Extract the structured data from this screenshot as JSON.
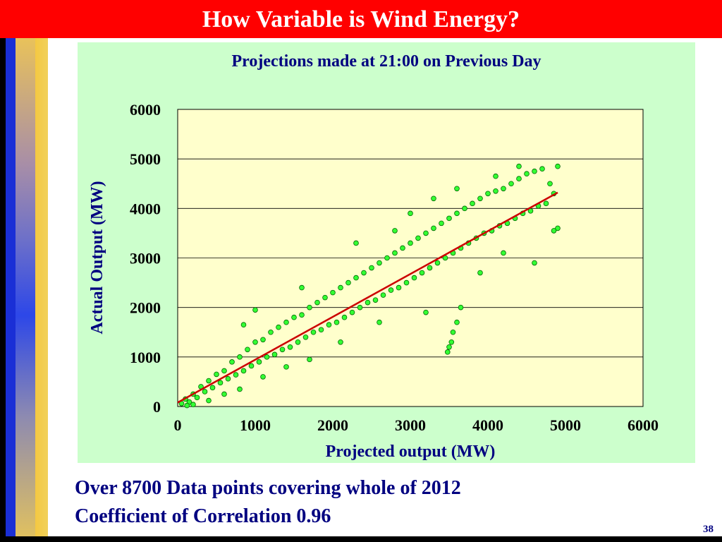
{
  "slide": {
    "title": "How Variable is Wind Energy?",
    "caption_line1": "Over 8700 Data points covering whole of 2012",
    "caption_line2": "Coefficient of Correlation 0.96",
    "slide_number": "38"
  },
  "chart_data": {
    "type": "scatter",
    "title": "Projections made at 21:00 on Previous  Day",
    "xlabel": "Projected output (MW)",
    "ylabel": "Actual Output (MW)",
    "xlim": [
      0,
      6000
    ],
    "ylim": [
      0,
      6000
    ],
    "xticks": [
      0,
      1000,
      2000,
      3000,
      4000,
      5000,
      6000
    ],
    "yticks": [
      0,
      1000,
      2000,
      3000,
      4000,
      5000,
      6000
    ],
    "grid": "horizontal",
    "point_count": 8700,
    "correlation": 0.96,
    "trend_line": {
      "x": [
        0,
        4900
      ],
      "y": [
        80,
        4320
      ]
    },
    "series": [
      {
        "marker_color": "#33ff33",
        "marker_edge": "#006600",
        "points": [
          [
            50,
            60
          ],
          [
            100,
            150
          ],
          [
            150,
            90
          ],
          [
            200,
            250
          ],
          [
            250,
            180
          ],
          [
            300,
            400
          ],
          [
            350,
            300
          ],
          [
            400,
            520
          ],
          [
            450,
            380
          ],
          [
            500,
            650
          ],
          [
            550,
            480
          ],
          [
            600,
            720
          ],
          [
            650,
            560
          ],
          [
            700,
            900
          ],
          [
            750,
            640
          ],
          [
            800,
            1000
          ],
          [
            850,
            720
          ],
          [
            900,
            1150
          ],
          [
            950,
            820
          ],
          [
            1000,
            1300
          ],
          [
            1050,
            900
          ],
          [
            1100,
            1350
          ],
          [
            1150,
            1000
          ],
          [
            1200,
            1500
          ],
          [
            1250,
            1050
          ],
          [
            1300,
            1600
          ],
          [
            1350,
            1150
          ],
          [
            1400,
            1700
          ],
          [
            1450,
            1200
          ],
          [
            1500,
            1800
          ],
          [
            1550,
            1300
          ],
          [
            1600,
            1850
          ],
          [
            1650,
            1400
          ],
          [
            1700,
            2000
          ],
          [
            1750,
            1500
          ],
          [
            1800,
            2100
          ],
          [
            1850,
            1550
          ],
          [
            1900,
            2200
          ],
          [
            1950,
            1650
          ],
          [
            2000,
            2300
          ],
          [
            2050,
            1700
          ],
          [
            2100,
            2400
          ],
          [
            2150,
            1800
          ],
          [
            2200,
            2500
          ],
          [
            2250,
            1900
          ],
          [
            2300,
            2600
          ],
          [
            2350,
            2000
          ],
          [
            2400,
            2700
          ],
          [
            2450,
            2100
          ],
          [
            2500,
            2800
          ],
          [
            2550,
            2150
          ],
          [
            2600,
            2900
          ],
          [
            2650,
            2250
          ],
          [
            2700,
            3000
          ],
          [
            2750,
            2350
          ],
          [
            2800,
            3100
          ],
          [
            2850,
            2400
          ],
          [
            2900,
            3200
          ],
          [
            2950,
            2500
          ],
          [
            3000,
            3300
          ],
          [
            3050,
            2600
          ],
          [
            3100,
            3400
          ],
          [
            3150,
            2700
          ],
          [
            3200,
            3500
          ],
          [
            3250,
            2800
          ],
          [
            3300,
            3600
          ],
          [
            3350,
            2900
          ],
          [
            3400,
            3700
          ],
          [
            3450,
            3000
          ],
          [
            3500,
            3800
          ],
          [
            3550,
            3100
          ],
          [
            3600,
            3900
          ],
          [
            3650,
            3200
          ],
          [
            3700,
            4000
          ],
          [
            3750,
            3300
          ],
          [
            3800,
            4100
          ],
          [
            3850,
            3400
          ],
          [
            3900,
            4200
          ],
          [
            3950,
            3500
          ],
          [
            4000,
            4300
          ],
          [
            4050,
            3550
          ],
          [
            4100,
            4350
          ],
          [
            4150,
            3650
          ],
          [
            4200,
            4400
          ],
          [
            4250,
            3700
          ],
          [
            4300,
            4500
          ],
          [
            4350,
            3800
          ],
          [
            4400,
            4600
          ],
          [
            4450,
            3900
          ],
          [
            4500,
            4700
          ],
          [
            4550,
            3950
          ],
          [
            4600,
            4750
          ],
          [
            4650,
            4050
          ],
          [
            4700,
            4800
          ],
          [
            4750,
            4100
          ],
          [
            4800,
            4500
          ],
          [
            4850,
            4300
          ],
          [
            4900,
            4850
          ],
          [
            4900,
            3600
          ],
          [
            4850,
            3550
          ],
          [
            3480,
            1100
          ],
          [
            3500,
            1200
          ],
          [
            3530,
            1300
          ],
          [
            3550,
            1500
          ],
          [
            3600,
            1700
          ],
          [
            3650,
            2000
          ],
          [
            1000,
            1950
          ],
          [
            850,
            1650
          ],
          [
            1600,
            2400
          ],
          [
            2300,
            3300
          ],
          [
            2800,
            3550
          ],
          [
            3000,
            3900
          ],
          [
            3300,
            4200
          ],
          [
            3600,
            4400
          ],
          [
            4100,
            4650
          ],
          [
            4400,
            4850
          ],
          [
            4600,
            2900
          ],
          [
            4200,
            3100
          ],
          [
            3900,
            2700
          ],
          [
            3200,
            1900
          ],
          [
            2600,
            1700
          ],
          [
            2100,
            1300
          ],
          [
            1700,
            950
          ],
          [
            1400,
            800
          ],
          [
            1100,
            600
          ],
          [
            800,
            350
          ],
          [
            600,
            250
          ],
          [
            400,
            120
          ],
          [
            200,
            40
          ],
          [
            120,
            20
          ]
        ]
      }
    ]
  }
}
